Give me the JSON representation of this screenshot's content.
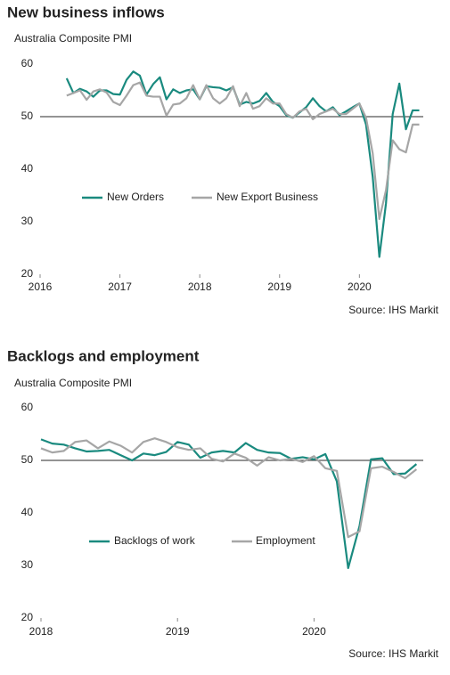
{
  "chart_data": [
    {
      "type": "line",
      "title": "New business inflows",
      "subtitle": "Australia Composite PMI",
      "source": "Source: IHS Markit",
      "x": [
        2016.333,
        2016.417,
        2016.5,
        2016.583,
        2016.667,
        2016.75,
        2016.833,
        2016.917,
        2017,
        2017.083,
        2017.167,
        2017.25,
        2017.333,
        2017.417,
        2017.5,
        2017.583,
        2017.667,
        2017.75,
        2017.833,
        2017.917,
        2018,
        2018.083,
        2018.167,
        2018.25,
        2018.333,
        2018.417,
        2018.5,
        2018.583,
        2018.667,
        2018.75,
        2018.833,
        2018.917,
        2019,
        2019.083,
        2019.167,
        2019.25,
        2019.333,
        2019.417,
        2019.5,
        2019.583,
        2019.667,
        2019.75,
        2019.833,
        2019.917,
        2020,
        2020.083,
        2020.167,
        2020.25,
        2020.333,
        2020.417,
        2020.5,
        2020.583,
        2020.667,
        2020.75
      ],
      "series": [
        {
          "name": "New Orders",
          "color": "#1a8a7f",
          "values": [
            57.3,
            54.5,
            55.3,
            54.8,
            53.8,
            55.0,
            55.0,
            54.3,
            54.2,
            57.0,
            58.6,
            57.8,
            54.2,
            56.2,
            57.5,
            53.3,
            55.2,
            54.5,
            55.0,
            55.2,
            53.3,
            55.8,
            55.6,
            55.5,
            55.0,
            55.6,
            52.3,
            52.8,
            52.5,
            53.0,
            54.5,
            52.8,
            52.0,
            50.3,
            49.8,
            50.8,
            51.8,
            53.5,
            52.0,
            51.0,
            51.8,
            50.3,
            51.0,
            51.8,
            52.5,
            48.5,
            38.5,
            23.3,
            33.5,
            50.5,
            56.3,
            47.6,
            51.2,
            51.2
          ]
        },
        {
          "name": "New Export Business",
          "color": "#a6a6a6",
          "values": [
            54.0,
            54.5,
            55.0,
            53.2,
            54.8,
            55.2,
            54.6,
            52.8,
            52.2,
            54.0,
            56.0,
            56.5,
            54.0,
            53.8,
            53.8,
            50.2,
            52.3,
            52.5,
            53.5,
            56.0,
            53.3,
            56.0,
            53.5,
            52.5,
            53.5,
            55.8,
            52.0,
            54.5,
            51.5,
            52.0,
            53.5,
            52.5,
            52.5,
            50.5,
            49.8,
            51.0,
            51.5,
            49.5,
            50.5,
            51.0,
            51.5,
            50.5,
            50.5,
            51.5,
            52.5,
            49.8,
            43.0,
            30.5,
            36.0,
            45.5,
            43.8,
            43.2,
            48.5,
            48.5
          ]
        }
      ],
      "xlim": [
        2016,
        2020.8
      ],
      "xticks": [
        2016,
        2017,
        2018,
        2019,
        2020
      ],
      "ylim": [
        20,
        60
      ],
      "yticks": [
        20,
        30,
        40,
        50,
        60
      ],
      "reference_line": 50,
      "legend": "center-left"
    },
    {
      "type": "line",
      "title": "Backlogs and employment",
      "subtitle": "Australia Composite PMI",
      "source": "Source: IHS Markit",
      "x": [
        2018,
        2018.083,
        2018.167,
        2018.25,
        2018.333,
        2018.417,
        2018.5,
        2018.583,
        2018.667,
        2018.75,
        2018.833,
        2018.917,
        2019,
        2019.083,
        2019.167,
        2019.25,
        2019.333,
        2019.417,
        2019.5,
        2019.583,
        2019.667,
        2019.75,
        2019.833,
        2019.917,
        2020,
        2020.083,
        2020.167,
        2020.25,
        2020.333,
        2020.417,
        2020.5,
        2020.583,
        2020.667,
        2020.75
      ],
      "series": [
        {
          "name": "Backlogs of work",
          "color": "#1a8a7f",
          "values": [
            54.0,
            53.2,
            53.0,
            52.3,
            51.7,
            51.8,
            52.0,
            51.0,
            50.0,
            51.3,
            51.0,
            51.6,
            53.5,
            53.0,
            50.5,
            51.5,
            51.8,
            51.5,
            53.3,
            52.0,
            51.5,
            51.4,
            50.3,
            50.6,
            50.2,
            51.2,
            46.0,
            29.5,
            37.5,
            50.2,
            50.4,
            47.4,
            47.5,
            49.3
          ]
        },
        {
          "name": "Employment",
          "color": "#a6a6a6",
          "values": [
            52.3,
            51.5,
            51.8,
            53.5,
            53.8,
            52.3,
            53.6,
            52.8,
            51.5,
            53.5,
            54.2,
            53.5,
            52.5,
            52.0,
            52.3,
            50.3,
            49.8,
            51.3,
            50.5,
            49.0,
            50.6,
            50.0,
            50.3,
            49.7,
            50.8,
            48.5,
            48.0,
            35.4,
            36.5,
            48.5,
            48.8,
            47.8,
            46.6,
            48.3
          ]
        }
      ],
      "xlim": [
        2018,
        2020.8
      ],
      "xticks": [
        2018,
        2019,
        2020
      ],
      "ylim": [
        20,
        60
      ],
      "yticks": [
        20,
        30,
        40,
        50,
        60
      ],
      "reference_line": 50,
      "legend": "center-left"
    }
  ]
}
